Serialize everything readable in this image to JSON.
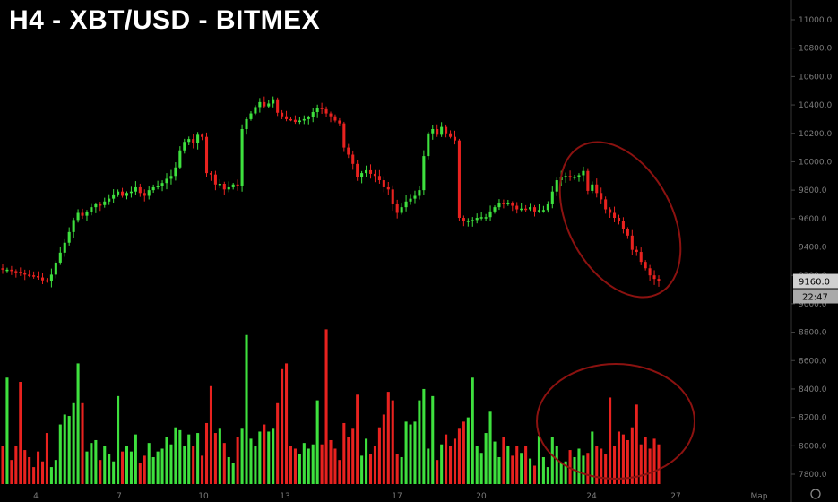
{
  "title": "H4 - XBT/USD - BITMEX",
  "chart_data": {
    "type": "candlestick",
    "symbol": "XBT/USD",
    "exchange": "BITMEX",
    "timeframe": "H4",
    "last_price": "9160.0",
    "countdown": "22:47",
    "y_ticks": [
      "11000.0",
      "10800.0",
      "10600.0",
      "10400.0",
      "10200.0",
      "10000.0",
      "9800.0",
      "9600.0",
      "9400.0",
      "9200.0",
      "9000.0",
      "8800.0",
      "8600.0",
      "8400.0",
      "8200.0",
      "8000.0",
      "7800.0"
    ],
    "x_ticks": [
      "4",
      "7",
      "10",
      "13",
      "17",
      "20",
      "24",
      "27",
      "Мар"
    ],
    "colors": {
      "up": "#3ee03e",
      "down": "#e8221f",
      "annotation": "#8b1210",
      "axis_text": "#7b7b7b",
      "price_tag": "#d0d0d0"
    },
    "price_close": [
      9240,
      9240,
      9230,
      9225,
      9220,
      9205,
      9200,
      9195,
      9185,
      9165,
      9160,
      9205,
      9290,
      9360,
      9430,
      9505,
      9590,
      9640,
      9620,
      9645,
      9680,
      9700,
      9695,
      9720,
      9740,
      9770,
      9790,
      9760,
      9780,
      9790,
      9820,
      9780,
      9760,
      9800,
      9820,
      9830,
      9850,
      9880,
      9900,
      9960,
      10080,
      10140,
      10160,
      10130,
      10190,
      10175,
      9920,
      9910,
      9840,
      9845,
      9805,
      9820,
      9840,
      9830,
      10230,
      10300,
      10340,
      10385,
      10420,
      10390,
      10410,
      10440,
      10345,
      10320,
      10300,
      10295,
      10280,
      10290,
      10300,
      10315,
      10350,
      10380,
      10370,
      10340,
      10320,
      10290,
      10270,
      10100,
      10050,
      9985,
      9890,
      9920,
      9940,
      9915,
      9900,
      9870,
      9820,
      9805,
      9700,
      9640,
      9680,
      9720,
      9740,
      9760,
      9800,
      10040,
      10200,
      10230,
      10190,
      10245,
      10200,
      10175,
      10150,
      9605,
      9580,
      9585,
      9590,
      9605,
      9610,
      9610,
      9650,
      9680,
      9710,
      9700,
      9710,
      9690,
      9665,
      9670,
      9665,
      9680,
      9650,
      9660,
      9660,
      9700,
      9790,
      9870,
      9895,
      9900,
      9890,
      9895,
      9905,
      9935,
      9795,
      9840,
      9780,
      9735,
      9665,
      9640,
      9605,
      9580,
      9525,
      9480,
      9380,
      9365,
      9295,
      9250,
      9200,
      9175,
      9160
    ],
    "volume": [
      8000,
      8480,
      7900,
      8000,
      8450,
      7970,
      7920,
      7850,
      7960,
      7890,
      8090,
      7850,
      7900,
      8150,
      8220,
      8210,
      8300,
      8580,
      8300,
      7960,
      8020,
      8040,
      7900,
      8000,
      7940,
      7890,
      8350,
      7960,
      8000,
      7960,
      8080,
      7880,
      7930,
      8020,
      7920,
      7960,
      7980,
      8060,
      8010,
      8130,
      8110,
      8000,
      8080,
      8000,
      8090,
      7930,
      8160,
      8420,
      8090,
      8120,
      8020,
      7920,
      7880,
      8060,
      8120,
      8780,
      8050,
      8000,
      8100,
      8150,
      8100,
      8120,
      8300,
      8540,
      8580,
      8000,
      7980,
      7940,
      8020,
      7980,
      8010,
      8320,
      8010,
      8820,
      8040,
      7980,
      7900,
      8160,
      8060,
      8120,
      8360,
      7930,
      8050,
      7940,
      8000,
      8130,
      8220,
      8380,
      8320,
      7940,
      7920,
      8170,
      8150,
      8170,
      8320,
      8400,
      7980,
      8350,
      7900,
      8010,
      8080,
      8000,
      8050,
      8120,
      8170,
      8200,
      8480,
      8000,
      7950,
      8090,
      8240,
      8030,
      7920,
      8060,
      8000,
      7930,
      8000,
      7950,
      8000,
      7910,
      7860,
      8070,
      7920,
      7850,
      8060,
      8000,
      7880,
      7890,
      7970,
      7920,
      7980,
      7930,
      7950,
      8100,
      8000,
      7980,
      7940,
      8340,
      8000,
      8100,
      8080,
      8040,
      8130,
      8290,
      8010,
      8060,
      7980,
      8050,
      8010
    ],
    "annotations": [
      {
        "type": "ellipse",
        "region": "price",
        "label": ""
      },
      {
        "type": "ellipse",
        "region": "volume",
        "label": ""
      }
    ]
  }
}
